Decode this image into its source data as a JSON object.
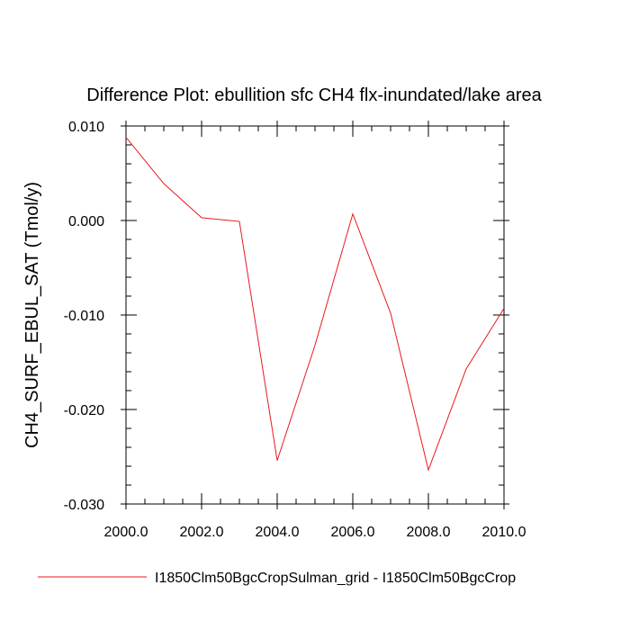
{
  "chart_data": {
    "type": "line",
    "title": "Difference Plot: ebullition sfc CH4 flx-inundated/lake area",
    "xlabel": "",
    "ylabel": "CH4_SURF_EBUL_SAT  (Tmol/y)",
    "xlim": [
      2000,
      2010
    ],
    "ylim": [
      -0.03,
      0.01
    ],
    "x_ticks": [
      2000,
      2002,
      2004,
      2006,
      2008,
      2010
    ],
    "x_tick_labels": [
      "2000.0",
      "2002.0",
      "2004.0",
      "2006.0",
      "2008.0",
      "2010.0"
    ],
    "y_ticks": [
      0.01,
      0.0,
      -0.01,
      -0.02,
      -0.03
    ],
    "y_tick_labels": [
      "0.010",
      "0.000",
      "-0.010",
      "-0.020",
      "-0.030"
    ],
    "grid": false,
    "legend_position": "bottom",
    "series": [
      {
        "name": "I1850Clm50BgcCropSulman_grid - I1850Clm50BgcCrop",
        "color": "#e8191c",
        "x": [
          2000,
          2001,
          2002,
          2003,
          2004,
          2005,
          2006,
          2007,
          2008,
          2009,
          2010
        ],
        "y": [
          0.0088,
          0.0039,
          0.0003,
          -0.0001,
          -0.0254,
          -0.0132,
          0.0007,
          -0.0098,
          -0.0264,
          -0.0157,
          -0.0093
        ]
      }
    ]
  }
}
